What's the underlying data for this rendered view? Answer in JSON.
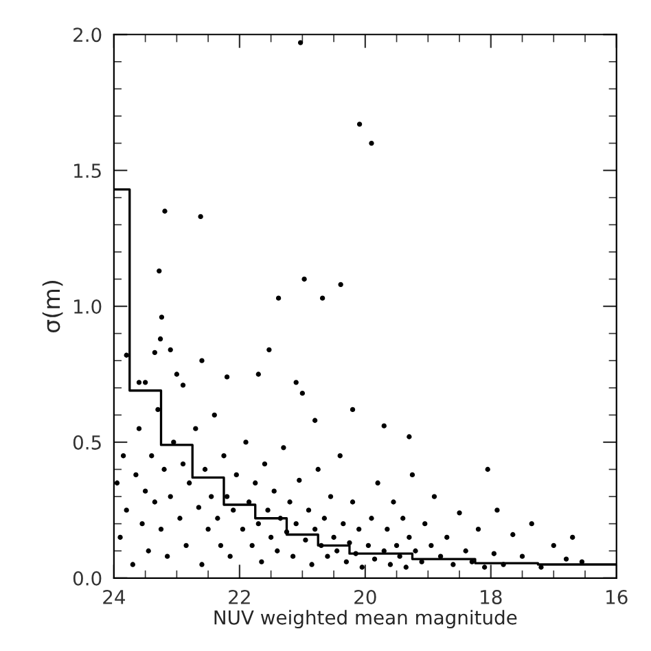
{
  "chart_data": {
    "type": "scatter",
    "xlabel": "NUV weighted mean magnitude",
    "ylabel": "σ(m)",
    "xlim": [
      24,
      16
    ],
    "ylim": [
      0,
      2.0
    ],
    "xticks": [
      24,
      22,
      20,
      18,
      16
    ],
    "yticks": [
      {
        "value": 0,
        "label": "0.0"
      },
      0.5,
      {
        "value": 1,
        "label": "1.0"
      },
      1.5,
      {
        "value": 2,
        "label": "2.0"
      }
    ],
    "grid": false,
    "legend": false,
    "series": [
      {
        "color": "#000000",
        "marker": "circle",
        "x": [
          21.03,
          20.09,
          19.9,
          23.19,
          22.62,
          23.28,
          20.97,
          20.39,
          21.38,
          20.68,
          23.24,
          21.53,
          23.26,
          23.35,
          23.1,
          22.6,
          23.8,
          23.6,
          23.5,
          23.0,
          22.9,
          22.2,
          21.7,
          21.1,
          21.0,
          20.2,
          19.7,
          19.3,
          20.8,
          23.95,
          23.9,
          23.85,
          23.8,
          23.7,
          23.65,
          23.6,
          23.55,
          23.5,
          23.45,
          23.4,
          23.35,
          23.3,
          23.25,
          23.2,
          23.15,
          23.1,
          23.05,
          22.95,
          22.9,
          22.85,
          22.8,
          22.7,
          22.65,
          22.6,
          22.55,
          22.5,
          22.45,
          22.4,
          22.35,
          22.3,
          22.25,
          22.2,
          22.15,
          22.1,
          22.05,
          21.95,
          21.9,
          21.85,
          21.8,
          21.75,
          21.7,
          21.65,
          21.6,
          21.55,
          21.5,
          21.45,
          21.4,
          21.35,
          21.3,
          21.25,
          21.2,
          21.15,
          21.1,
          21.05,
          20.95,
          20.9,
          20.85,
          20.8,
          20.75,
          20.7,
          20.65,
          20.6,
          20.55,
          20.5,
          20.45,
          20.4,
          20.35,
          20.3,
          20.25,
          20.2,
          20.15,
          20.1,
          20.05,
          19.95,
          19.9,
          19.85,
          19.8,
          19.7,
          19.65,
          19.6,
          19.55,
          19.5,
          19.45,
          19.4,
          19.35,
          19.3,
          19.25,
          19.2,
          19.1,
          19.05,
          18.95,
          18.9,
          18.8,
          18.7,
          18.6,
          18.5,
          18.4,
          18.3,
          18.2,
          18.1,
          18.05,
          17.95,
          17.9,
          17.8,
          17.65,
          17.5,
          17.35,
          17.2,
          17.0,
          16.8,
          16.7,
          16.55
        ],
        "values": [
          1.97,
          1.67,
          1.6,
          1.35,
          1.33,
          1.13,
          1.1,
          1.08,
          1.03,
          1.03,
          0.96,
          0.84,
          0.88,
          0.83,
          0.84,
          0.8,
          0.82,
          0.72,
          0.72,
          0.75,
          0.71,
          0.74,
          0.75,
          0.72,
          0.68,
          0.62,
          0.56,
          0.52,
          0.58,
          0.35,
          0.15,
          0.45,
          0.25,
          0.05,
          0.38,
          0.55,
          0.2,
          0.32,
          0.1,
          0.45,
          0.28,
          0.62,
          0.18,
          0.4,
          0.08,
          0.3,
          0.5,
          0.22,
          0.42,
          0.12,
          0.35,
          0.55,
          0.26,
          0.05,
          0.4,
          0.18,
          0.3,
          0.6,
          0.22,
          0.12,
          0.45,
          0.3,
          0.08,
          0.25,
          0.38,
          0.18,
          0.5,
          0.28,
          0.12,
          0.35,
          0.2,
          0.06,
          0.42,
          0.25,
          0.15,
          0.32,
          0.1,
          0.22,
          0.48,
          0.17,
          0.28,
          0.08,
          0.2,
          0.36,
          0.14,
          0.25,
          0.05,
          0.18,
          0.4,
          0.12,
          0.22,
          0.08,
          0.3,
          0.15,
          0.1,
          0.45,
          0.2,
          0.06,
          0.13,
          0.28,
          0.09,
          0.18,
          0.04,
          0.12,
          0.22,
          0.07,
          0.35,
          0.1,
          0.18,
          0.05,
          0.28,
          0.12,
          0.08,
          0.22,
          0.04,
          0.15,
          0.38,
          0.1,
          0.06,
          0.2,
          0.12,
          0.3,
          0.08,
          0.15,
          0.05,
          0.24,
          0.1,
          0.06,
          0.18,
          0.04,
          0.4,
          0.09,
          0.25,
          0.05,
          0.16,
          0.08,
          0.2,
          0.04,
          0.12,
          0.07,
          0.15,
          0.06
        ]
      },
      {
        "type": "step",
        "color": "#000000",
        "x": [
          24,
          23.75,
          23.25,
          22.75,
          22.25,
          21.75,
          21.25,
          20.75,
          20.25,
          19.25,
          18.25,
          17.25,
          16
        ],
        "values": [
          1.43,
          0.69,
          0.49,
          0.37,
          0.27,
          0.22,
          0.16,
          0.12,
          0.09,
          0.07,
          0.055,
          0.05,
          0.05
        ]
      }
    ]
  }
}
